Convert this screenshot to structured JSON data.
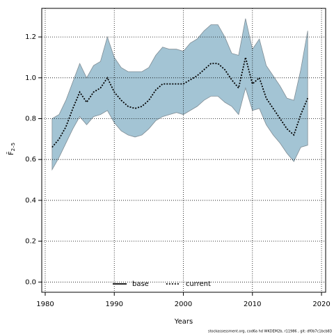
{
  "chart_data": {
    "type": "line",
    "xlabel": "Years",
    "ylabel": "F̄",
    "ylabel_sub": "2–5",
    "note": "stockassessment.org, cod6a hd WKDEM2b, r11986 , git: df0b7c1bcb83",
    "x": [
      1981,
      1982,
      1983,
      1984,
      1985,
      1986,
      1987,
      1988,
      1989,
      1990,
      1991,
      1992,
      1993,
      1994,
      1995,
      1996,
      1997,
      1998,
      1999,
      2000,
      2001,
      2002,
      2003,
      2004,
      2005,
      2006,
      2007,
      2008,
      2009,
      2010,
      2011,
      2012,
      2013,
      2014,
      2015,
      2016,
      2017,
      2018
    ],
    "band": {
      "color": "#a3c4d4",
      "edge": "#7f8c94",
      "upper": [
        0.8,
        0.82,
        0.89,
        0.98,
        1.07,
        1.0,
        1.06,
        1.08,
        1.2,
        1.1,
        1.05,
        1.03,
        1.03,
        1.03,
        1.05,
        1.11,
        1.15,
        1.14,
        1.14,
        1.13,
        1.17,
        1.19,
        1.23,
        1.26,
        1.26,
        1.2,
        1.12,
        1.11,
        1.29,
        1.14,
        1.19,
        1.06,
        1.01,
        0.96,
        0.9,
        0.89,
        1.04,
        1.23
      ],
      "lower": [
        0.55,
        0.61,
        0.68,
        0.75,
        0.81,
        0.77,
        0.81,
        0.82,
        0.84,
        0.78,
        0.74,
        0.72,
        0.71,
        0.72,
        0.75,
        0.79,
        0.81,
        0.82,
        0.83,
        0.82,
        0.84,
        0.86,
        0.89,
        0.91,
        0.91,
        0.88,
        0.86,
        0.82,
        0.95,
        0.84,
        0.85,
        0.77,
        0.72,
        0.68,
        0.63,
        0.59,
        0.66,
        0.67
      ]
    },
    "series": [
      {
        "name": "base",
        "color": "#000000",
        "dash": "solid"
      },
      {
        "name": "current",
        "color": "#000000",
        "dash": "dotted",
        "values": [
          0.66,
          0.7,
          0.76,
          0.85,
          0.93,
          0.88,
          0.93,
          0.95,
          1.0,
          0.93,
          0.89,
          0.86,
          0.85,
          0.86,
          0.89,
          0.94,
          0.97,
          0.97,
          0.97,
          0.97,
          0.99,
          1.01,
          1.04,
          1.07,
          1.07,
          1.04,
          0.99,
          0.95,
          1.1,
          0.97,
          1.0,
          0.9,
          0.85,
          0.8,
          0.75,
          0.72,
          0.82,
          0.9
        ]
      }
    ],
    "xlim": [
      1979.5,
      2020.6
    ],
    "ylim": [
      -0.05,
      1.34
    ],
    "xticks": [
      1980,
      1990,
      2000,
      2010,
      2020
    ],
    "yticks": [
      {
        "value": 0,
        "label": "0.0"
      },
      {
        "value": 0.2,
        "label": "0.2"
      },
      {
        "value": 0.4,
        "label": "0.4"
      },
      {
        "value": 0.6,
        "label": "0.6"
      },
      {
        "value": 0.8,
        "label": "0.8"
      },
      {
        "value": 1,
        "label": "1.0"
      },
      {
        "value": 1.2,
        "label": "1.2"
      }
    ],
    "grid": true,
    "legend": "bottom"
  }
}
